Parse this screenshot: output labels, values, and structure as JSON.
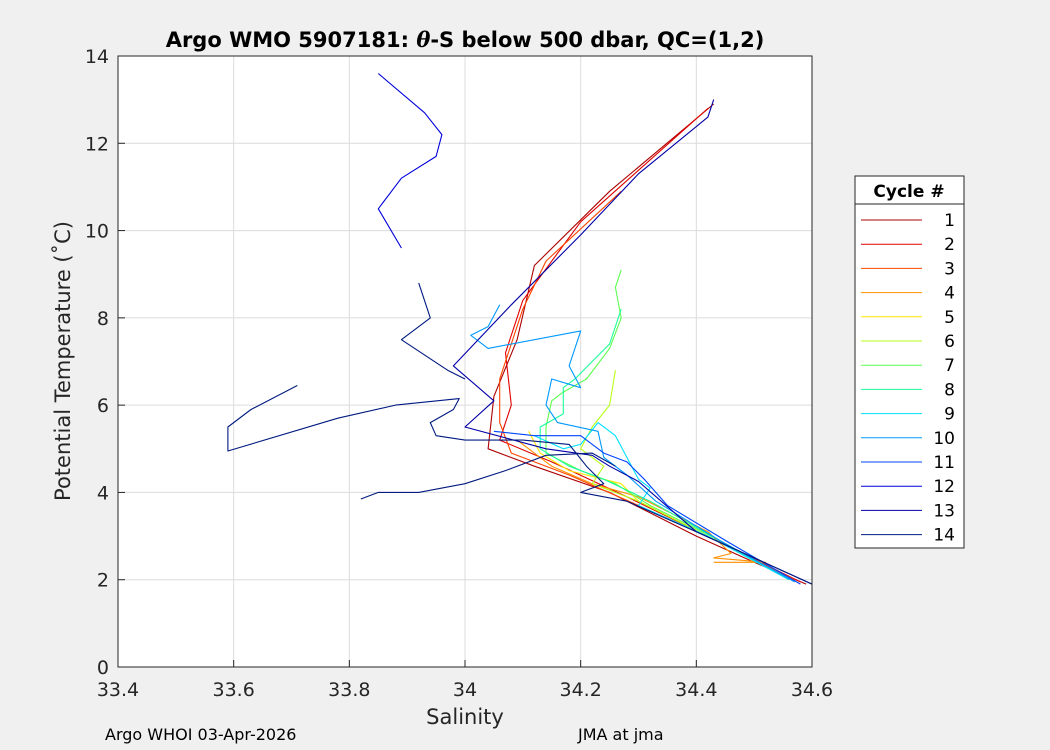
{
  "chart_data": {
    "type": "line",
    "title": "Argo WMO 5907181: θ-S below 500 dbar,  QC=(1,2)",
    "title_parts": {
      "prefix": "Argo WMO 5907181: ",
      "theta": "θ",
      "suffix": "-S below 500 dbar,  QC=(1,2)"
    },
    "xlabel": "Salinity",
    "ylabel": "Potential Temperature (˚C)",
    "xlim": [
      33.4,
      34.6
    ],
    "ylim": [
      0,
      14
    ],
    "xticks": [
      "33.4",
      "33.6",
      "33.8",
      "34",
      "34.2",
      "34.4",
      "34.6"
    ],
    "yticks": [
      "0",
      "2",
      "4",
      "6",
      "8",
      "10",
      "12",
      "14"
    ],
    "grid": true,
    "legend_title": "Cycle #",
    "legend_position": "outside-right",
    "colors": [
      "#ad0000",
      "#e10000",
      "#ff4400",
      "#ff9000",
      "#ffe600",
      "#b8ff1a",
      "#5cff4f",
      "#1aff9b",
      "#00e1ff",
      "#0099ff",
      "#0044ff",
      "#0000db",
      "#0000a8",
      "#001a80"
    ],
    "series": [
      {
        "name": "1",
        "points": [
          [
            34.43,
            12.9
          ],
          [
            34.25,
            10.9
          ],
          [
            34.12,
            9.2
          ],
          [
            34.09,
            7.5
          ],
          [
            34.05,
            6.2
          ],
          [
            34.04,
            5.0
          ],
          [
            34.12,
            4.6
          ],
          [
            34.25,
            4.0
          ],
          [
            34.4,
            3.0
          ],
          [
            34.5,
            2.4
          ],
          [
            34.59,
            1.9
          ]
        ]
      },
      {
        "name": "2",
        "points": [
          [
            34.42,
            12.8
          ],
          [
            34.2,
            10.2
          ],
          [
            34.1,
            8.4
          ],
          [
            34.07,
            7.2
          ],
          [
            34.08,
            6.0
          ],
          [
            34.06,
            5.2
          ],
          [
            34.15,
            4.7
          ],
          [
            34.28,
            3.9
          ],
          [
            34.45,
            2.8
          ],
          [
            34.58,
            1.95
          ]
        ]
      },
      {
        "name": "3",
        "points": [
          [
            34.27,
            10.9
          ],
          [
            34.14,
            9.3
          ],
          [
            34.1,
            8.2
          ],
          [
            34.06,
            6.6
          ],
          [
            34.06,
            5.6
          ],
          [
            34.08,
            4.9
          ],
          [
            34.18,
            4.4
          ],
          [
            34.3,
            3.7
          ],
          [
            34.45,
            2.8
          ],
          [
            34.57,
            2.0
          ]
        ]
      },
      {
        "name": "4",
        "points": [
          [
            34.09,
            5.2
          ],
          [
            34.15,
            4.6
          ],
          [
            34.22,
            4.2
          ],
          [
            34.3,
            3.9
          ],
          [
            34.42,
            3.1
          ],
          [
            34.46,
            2.6
          ],
          [
            34.43,
            2.5
          ],
          [
            34.52,
            2.4
          ],
          [
            34.43,
            2.4
          ]
        ]
      },
      {
        "name": "5",
        "points": [
          [
            34.11,
            5.4
          ],
          [
            34.13,
            4.9
          ],
          [
            34.18,
            4.5
          ],
          [
            34.27,
            4.2
          ],
          [
            34.3,
            3.8
          ],
          [
            34.42,
            3.0
          ],
          [
            34.55,
            2.1
          ]
        ]
      },
      {
        "name": "6",
        "points": [
          [
            34.26,
            6.8
          ],
          [
            34.25,
            6.0
          ],
          [
            34.22,
            5.5
          ],
          [
            34.2,
            5.0
          ],
          [
            34.24,
            4.6
          ],
          [
            34.22,
            4.2
          ],
          [
            34.3,
            3.8
          ],
          [
            34.42,
            3.0
          ],
          [
            34.55,
            2.1
          ]
        ]
      },
      {
        "name": "7",
        "points": [
          [
            34.27,
            9.1
          ],
          [
            34.26,
            8.7
          ],
          [
            34.27,
            8.0
          ],
          [
            34.25,
            7.3
          ],
          [
            34.21,
            6.6
          ],
          [
            34.17,
            6.3
          ],
          [
            34.15,
            6.1
          ],
          [
            34.14,
            5.5
          ],
          [
            34.14,
            4.9
          ],
          [
            34.2,
            4.5
          ],
          [
            34.26,
            4.2
          ],
          [
            34.32,
            3.7
          ],
          [
            34.44,
            2.9
          ],
          [
            34.56,
            2.0
          ]
        ]
      },
      {
        "name": "8",
        "points": [
          [
            34.27,
            8.2
          ],
          [
            34.25,
            7.4
          ],
          [
            34.22,
            7.0
          ],
          [
            34.19,
            6.6
          ],
          [
            34.17,
            6.4
          ],
          [
            34.17,
            5.8
          ],
          [
            34.13,
            5.5
          ],
          [
            34.13,
            5.0
          ],
          [
            34.18,
            4.6
          ],
          [
            34.24,
            4.3
          ],
          [
            34.32,
            3.8
          ],
          [
            34.44,
            2.9
          ],
          [
            34.56,
            2.0
          ]
        ]
      },
      {
        "name": "9",
        "points": [
          [
            34.12,
            5.3
          ],
          [
            34.17,
            5.0
          ],
          [
            34.2,
            5.1
          ],
          [
            34.23,
            5.6
          ],
          [
            34.26,
            5.3
          ],
          [
            34.3,
            4.3
          ],
          [
            34.32,
            4.1
          ],
          [
            34.3,
            3.7
          ],
          [
            34.42,
            3.0
          ],
          [
            34.56,
            2.0
          ]
        ]
      },
      {
        "name": "10",
        "points": [
          [
            34.06,
            8.3
          ],
          [
            34.04,
            7.8
          ],
          [
            34.01,
            7.6
          ],
          [
            34.04,
            7.3
          ],
          [
            34.2,
            7.7
          ],
          [
            34.18,
            6.9
          ],
          [
            34.2,
            6.4
          ],
          [
            34.15,
            6.6
          ],
          [
            34.14,
            6.0
          ],
          [
            34.16,
            5.6
          ],
          [
            34.23,
            5.4
          ],
          [
            34.24,
            4.8
          ],
          [
            34.28,
            4.4
          ],
          [
            34.33,
            3.8
          ],
          [
            34.44,
            2.9
          ],
          [
            34.57,
            1.95
          ]
        ]
      },
      {
        "name": "11",
        "points": [
          [
            34.05,
            5.4
          ],
          [
            34.12,
            5.3
          ],
          [
            34.2,
            5.3
          ],
          [
            34.24,
            4.9
          ],
          [
            34.28,
            4.7
          ],
          [
            34.31,
            4.3
          ],
          [
            34.35,
            3.7
          ],
          [
            34.45,
            2.9
          ],
          [
            34.58,
            1.9
          ]
        ]
      },
      {
        "name": "12",
        "points": [
          [
            33.85,
            13.6
          ],
          [
            33.93,
            12.7
          ],
          [
            33.96,
            12.2
          ],
          [
            33.95,
            11.7
          ],
          [
            33.89,
            11.2
          ],
          [
            33.85,
            10.5
          ],
          [
            33.89,
            9.6
          ]
        ]
      },
      {
        "name": "13",
        "points": [
          [
            34.43,
            13.0
          ],
          [
            34.42,
            12.6
          ],
          [
            34.3,
            11.3
          ],
          [
            34.2,
            9.9
          ],
          [
            34.08,
            8.3
          ],
          [
            33.98,
            6.9
          ],
          [
            34.05,
            6.1
          ],
          [
            34.0,
            5.5
          ],
          [
            34.14,
            5.0
          ],
          [
            34.22,
            4.85
          ],
          [
            34.25,
            4.6
          ],
          [
            34.3,
            4.25
          ],
          [
            34.4,
            3.1
          ],
          [
            34.6,
            1.9
          ]
        ]
      },
      {
        "name": "14",
        "points": [
          [
            33.71,
            6.45
          ],
          [
            33.63,
            5.9
          ],
          [
            33.59,
            5.5
          ],
          [
            33.59,
            4.95
          ],
          [
            33.78,
            5.7
          ],
          [
            33.88,
            6.0
          ],
          [
            33.99,
            6.15
          ],
          [
            33.98,
            5.9
          ],
          [
            33.94,
            5.6
          ],
          [
            33.95,
            5.3
          ],
          [
            34.0,
            5.2
          ],
          [
            34.1,
            5.2
          ],
          [
            34.18,
            5.1
          ],
          [
            34.21,
            4.6
          ],
          [
            34.24,
            4.2
          ],
          [
            34.2,
            4.0
          ],
          [
            34.28,
            3.8
          ],
          [
            34.4,
            3.1
          ],
          [
            34.6,
            1.9
          ]
        ]
      },
      {
        "name": "",
        "points": [
          [
            33.92,
            8.8
          ],
          [
            33.94,
            8.0
          ],
          [
            33.89,
            7.5
          ],
          [
            33.97,
            6.8
          ],
          [
            34.0,
            6.6
          ]
        ]
      },
      {
        "name": "",
        "points": [
          [
            33.82,
            3.85
          ],
          [
            33.85,
            4.0
          ],
          [
            33.92,
            4.0
          ],
          [
            34.0,
            4.2
          ],
          [
            34.07,
            4.5
          ],
          [
            34.14,
            4.85
          ],
          [
            34.22,
            4.9
          ],
          [
            34.26,
            4.6
          ]
        ]
      }
    ]
  },
  "footer": {
    "left": "Argo WHOI 03-Apr-2026",
    "right": "JMA at jma"
  }
}
